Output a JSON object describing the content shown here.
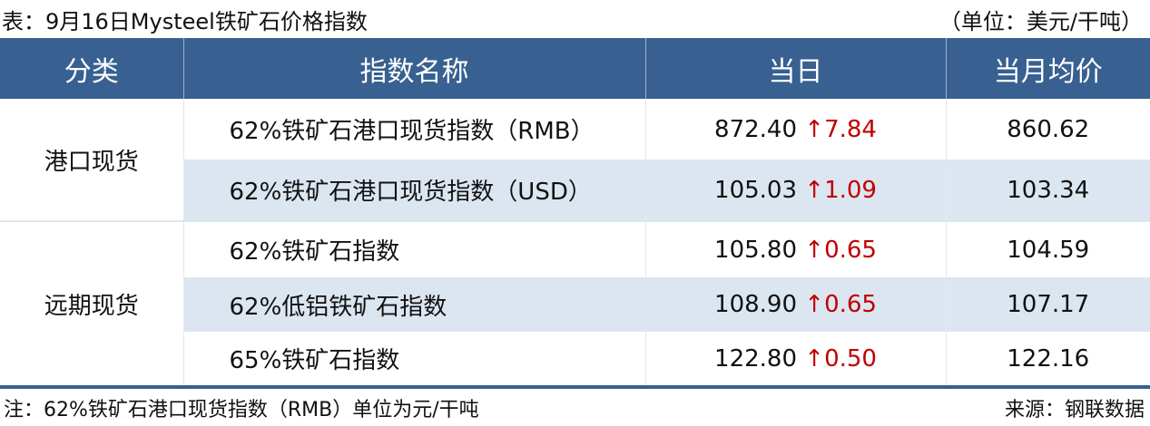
{
  "title": "表：9月16日Mysteel铁矿石价格指数",
  "unit": "（单位：美元/干吨）",
  "headers": [
    "分类",
    "指数名称",
    "当日",
    "当月均价"
  ],
  "groups": [
    "港口现货",
    "远期现货"
  ],
  "rows": [
    {
      "name": "62%铁矿石港口现货指数（RMB）",
      "value": "872.40",
      "arrow": "↑",
      "change": "7.84",
      "avg": "860.62"
    },
    {
      "name": "62%铁矿石港口现货指数（USD）",
      "value": "105.03",
      "arrow": "↑",
      "change": "1.09",
      "avg": "103.34"
    },
    {
      "name": "62%铁矿石指数",
      "value": "105.80",
      "arrow": "↑",
      "change": "0.65",
      "avg": "104.59"
    },
    {
      "name": "62%低铝铁矿石指数",
      "value": "108.90",
      "arrow": "↑",
      "change": "0.65",
      "avg": "107.17"
    },
    {
      "name": "65%铁矿石指数",
      "value": "122.80",
      "arrow": "↑",
      "change": "0.50",
      "avg": "122.16"
    }
  ],
  "note": "注：62%铁矿石港口现货指数（RMB）单位为元/干吨",
  "source": "来源：钢联数据",
  "colors": {
    "header": "#386091",
    "stripe": "#dce6f1",
    "up": "#c00000"
  }
}
